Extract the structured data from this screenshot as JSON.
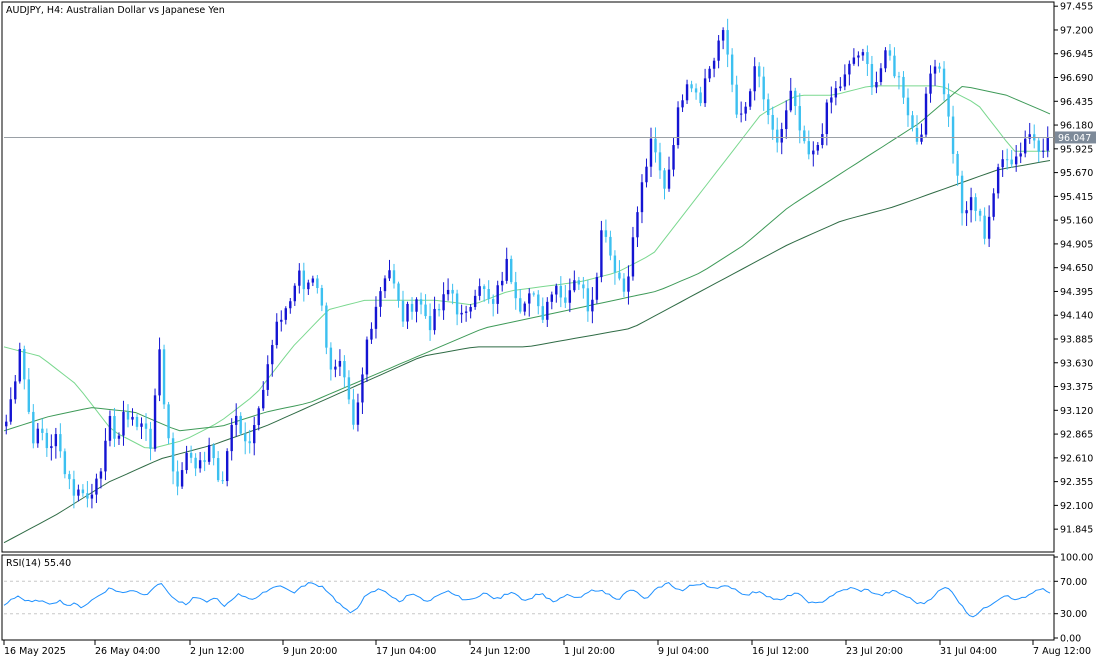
{
  "chart_data": [
    {
      "type": "candlestick",
      "symbol": "AUDJPY",
      "timeframe": "H4",
      "title": "AUDJPY, H4:  Australian Dollar vs Japanese Yen",
      "current_price": "96.047",
      "ylim": [
        91.6,
        97.5
      ],
      "y_ticks": [
        "97.455",
        "97.200",
        "96.945",
        "96.690",
        "96.435",
        "96.180",
        "95.925",
        "95.670",
        "95.415",
        "95.160",
        "94.905",
        "94.650",
        "94.395",
        "94.140",
        "93.885",
        "93.630",
        "93.375",
        "93.120",
        "92.865",
        "92.610",
        "92.355",
        "92.100",
        "91.845"
      ],
      "x_ticks": [
        "16 May 2025",
        "26 May 04:00",
        "2 Jun 12:00",
        "9 Jun 20:00",
        "17 Jun 04:00",
        "24 Jun 12:00",
        "1 Jul 20:00",
        "9 Jul 04:00",
        "16 Jul 12:00",
        "23 Jul 20:00",
        "31 Jul 04:00",
        "7 Aug 12:00"
      ],
      "grid": false,
      "colors": {
        "bull": "#1414d2",
        "bear": "#3cc0f0",
        "ma_fast": "#7ad88f",
        "ma_mid": "#3e9a58",
        "ma_slow": "#2f6b45",
        "price_line": "#9aa0a6",
        "price_label_bg": "#7d8a99"
      },
      "ohlc_anchors": [
        [
          93.0,
          1
        ],
        [
          93.35,
          1
        ],
        [
          93.85,
          1
        ],
        [
          93.2,
          0
        ],
        [
          92.8,
          0
        ],
        [
          92.9,
          1
        ],
        [
          92.7,
          0
        ],
        [
          92.85,
          1
        ],
        [
          92.6,
          0
        ],
        [
          92.4,
          0
        ],
        [
          92.2,
          0
        ],
        [
          92.3,
          1
        ],
        [
          92.1,
          0
        ],
        [
          92.45,
          1
        ],
        [
          92.6,
          1
        ],
        [
          93.0,
          1
        ],
        [
          92.8,
          0
        ],
        [
          93.05,
          1
        ],
        [
          93.1,
          0
        ],
        [
          92.9,
          0
        ],
        [
          93.0,
          1
        ],
        [
          92.7,
          0
        ],
        [
          93.85,
          1
        ],
        [
          93.0,
          0
        ],
        [
          92.5,
          0
        ],
        [
          92.3,
          0
        ],
        [
          92.7,
          1
        ],
        [
          92.6,
          0
        ],
        [
          92.5,
          0
        ],
        [
          92.7,
          1
        ],
        [
          92.6,
          0
        ],
        [
          92.25,
          0
        ],
        [
          92.8,
          1
        ],
        [
          93.05,
          1
        ],
        [
          92.9,
          0
        ],
        [
          92.75,
          0
        ],
        [
          93.15,
          1
        ],
        [
          93.35,
          1
        ],
        [
          93.7,
          1
        ],
        [
          94.0,
          1
        ],
        [
          94.2,
          1
        ],
        [
          94.3,
          1
        ],
        [
          94.6,
          1
        ],
        [
          94.4,
          0
        ],
        [
          94.6,
          1
        ],
        [
          94.45,
          0
        ],
        [
          93.9,
          0
        ],
        [
          93.5,
          0
        ],
        [
          93.6,
          1
        ],
        [
          93.3,
          0
        ],
        [
          92.9,
          0
        ],
        [
          93.3,
          1
        ],
        [
          93.9,
          1
        ],
        [
          94.2,
          1
        ],
        [
          94.45,
          1
        ],
        [
          94.7,
          1
        ],
        [
          94.4,
          0
        ],
        [
          94.1,
          0
        ],
        [
          94.2,
          1
        ],
        [
          94.35,
          1
        ],
        [
          94.2,
          0
        ],
        [
          94.05,
          0
        ],
        [
          94.15,
          1
        ],
        [
          94.3,
          1
        ],
        [
          94.45,
          1
        ],
        [
          94.2,
          0
        ],
        [
          94.05,
          0
        ],
        [
          94.3,
          1
        ],
        [
          94.55,
          1
        ],
        [
          94.35,
          0
        ],
        [
          94.2,
          0
        ],
        [
          94.45,
          1
        ],
        [
          94.7,
          1
        ],
        [
          94.5,
          0
        ],
        [
          94.25,
          0
        ],
        [
          94.4,
          1
        ],
        [
          94.3,
          0
        ],
        [
          94.1,
          0
        ],
        [
          94.3,
          1
        ],
        [
          94.55,
          1
        ],
        [
          94.3,
          0
        ],
        [
          94.4,
          1
        ],
        [
          94.6,
          1
        ],
        [
          94.4,
          0
        ],
        [
          94.2,
          0
        ],
        [
          94.6,
          1
        ],
        [
          95.2,
          1
        ],
        [
          94.8,
          0
        ],
        [
          94.6,
          0
        ],
        [
          94.4,
          0
        ],
        [
          94.8,
          1
        ],
        [
          95.3,
          1
        ],
        [
          95.7,
          1
        ],
        [
          96.0,
          1
        ],
        [
          95.7,
          0
        ],
        [
          95.5,
          0
        ],
        [
          96.0,
          1
        ],
        [
          96.4,
          1
        ],
        [
          96.7,
          1
        ],
        [
          96.6,
          0
        ],
        [
          96.5,
          0
        ],
        [
          96.75,
          1
        ],
        [
          96.9,
          1
        ],
        [
          97.2,
          1
        ],
        [
          96.9,
          0
        ],
        [
          96.4,
          0
        ],
        [
          96.2,
          0
        ],
        [
          96.5,
          1
        ],
        [
          96.8,
          1
        ],
        [
          96.5,
          0
        ],
        [
          96.1,
          0
        ],
        [
          96.0,
          0
        ],
        [
          96.2,
          1
        ],
        [
          96.5,
          1
        ],
        [
          96.2,
          0
        ],
        [
          95.9,
          0
        ],
        [
          95.8,
          0
        ],
        [
          96.0,
          1
        ],
        [
          96.3,
          1
        ],
        [
          96.5,
          1
        ],
        [
          96.6,
          1
        ],
        [
          96.7,
          1
        ],
        [
          96.9,
          1
        ],
        [
          96.95,
          1
        ],
        [
          96.8,
          0
        ],
        [
          96.6,
          0
        ],
        [
          96.8,
          1
        ],
        [
          96.95,
          1
        ],
        [
          96.75,
          0
        ],
        [
          96.6,
          0
        ],
        [
          96.3,
          0
        ],
        [
          96.0,
          0
        ],
        [
          96.2,
          1
        ],
        [
          96.7,
          1
        ],
        [
          96.95,
          1
        ],
        [
          96.6,
          0
        ],
        [
          96.1,
          0
        ],
        [
          95.6,
          0
        ],
        [
          95.1,
          0
        ],
        [
          95.4,
          1
        ],
        [
          95.2,
          0
        ],
        [
          95.0,
          0
        ],
        [
          95.4,
          1
        ],
        [
          95.7,
          1
        ],
        [
          95.9,
          1
        ],
        [
          95.8,
          0
        ],
        [
          95.9,
          1
        ],
        [
          96.1,
          1
        ],
        [
          96.05,
          0
        ],
        [
          95.95,
          1
        ],
        [
          96.047,
          1
        ]
      ],
      "ma_fast_anchors": [
        93.8,
        93.7,
        93.4,
        92.9,
        92.7,
        92.8,
        93.0,
        93.3,
        93.8,
        94.2,
        94.3,
        94.3,
        94.3,
        94.25,
        94.4,
        94.45,
        94.5,
        94.6,
        94.8,
        95.3,
        95.8,
        96.3,
        96.5,
        96.5,
        96.6,
        96.6,
        96.6,
        96.4,
        95.9,
        95.9
      ],
      "ma_mid_anchors": [
        92.9,
        93.05,
        93.15,
        93.1,
        92.9,
        92.95,
        93.1,
        93.2,
        93.4,
        93.6,
        93.8,
        94.0,
        94.1,
        94.2,
        94.3,
        94.4,
        94.6,
        94.9,
        95.3,
        95.6,
        95.9,
        96.2,
        96.6,
        96.5,
        96.3
      ],
      "ma_slow_anchors": [
        91.7,
        92.0,
        92.35,
        92.6,
        92.75,
        92.95,
        93.2,
        93.45,
        93.7,
        93.8,
        93.8,
        93.9,
        94.0,
        94.3,
        94.6,
        94.9,
        95.15,
        95.3,
        95.5,
        95.7,
        95.8
      ]
    },
    {
      "type": "line",
      "title": "RSI(14) 55.40",
      "series_name": "RSI(14)",
      "last_value": 55.4,
      "ylim": [
        0,
        100
      ],
      "y_ticks": [
        "100.00",
        "70.00",
        "30.00",
        "0.00"
      ],
      "levels": [
        70,
        30
      ],
      "values": [
        40,
        48,
        52,
        46,
        44,
        47,
        42,
        44,
        46,
        40,
        42,
        38,
        44,
        50,
        56,
        62,
        58,
        55,
        60,
        57,
        52,
        62,
        68,
        60,
        48,
        44,
        40,
        52,
        47,
        45,
        50,
        38,
        46,
        54,
        52,
        48,
        50,
        58,
        62,
        66,
        60,
        56,
        62,
        68,
        66,
        64,
        56,
        46,
        38,
        30,
        38,
        50,
        56,
        60,
        58,
        50,
        44,
        52,
        56,
        48,
        44,
        50,
        54,
        58,
        52,
        48,
        46,
        52,
        56,
        50,
        48,
        54,
        58,
        50,
        46,
        52,
        56,
        48,
        44,
        50,
        54,
        48,
        52,
        58,
        60,
        56,
        52,
        48,
        56,
        60,
        52,
        48,
        58,
        64,
        68,
        62,
        58,
        64,
        66,
        68,
        62,
        60,
        66,
        62,
        58,
        52,
        56,
        58,
        52,
        48,
        46,
        52,
        56,
        50,
        44,
        42,
        46,
        52,
        56,
        60,
        62,
        58,
        60,
        56,
        52,
        56,
        58,
        54,
        50,
        44,
        42,
        48,
        56,
        62,
        60,
        46,
        34,
        26,
        32,
        38,
        44,
        50,
        54,
        46,
        50,
        52,
        58,
        60,
        55.4
      ],
      "colors": {
        "line": "#1e90ff",
        "levels": "#c8c8c8"
      }
    }
  ]
}
